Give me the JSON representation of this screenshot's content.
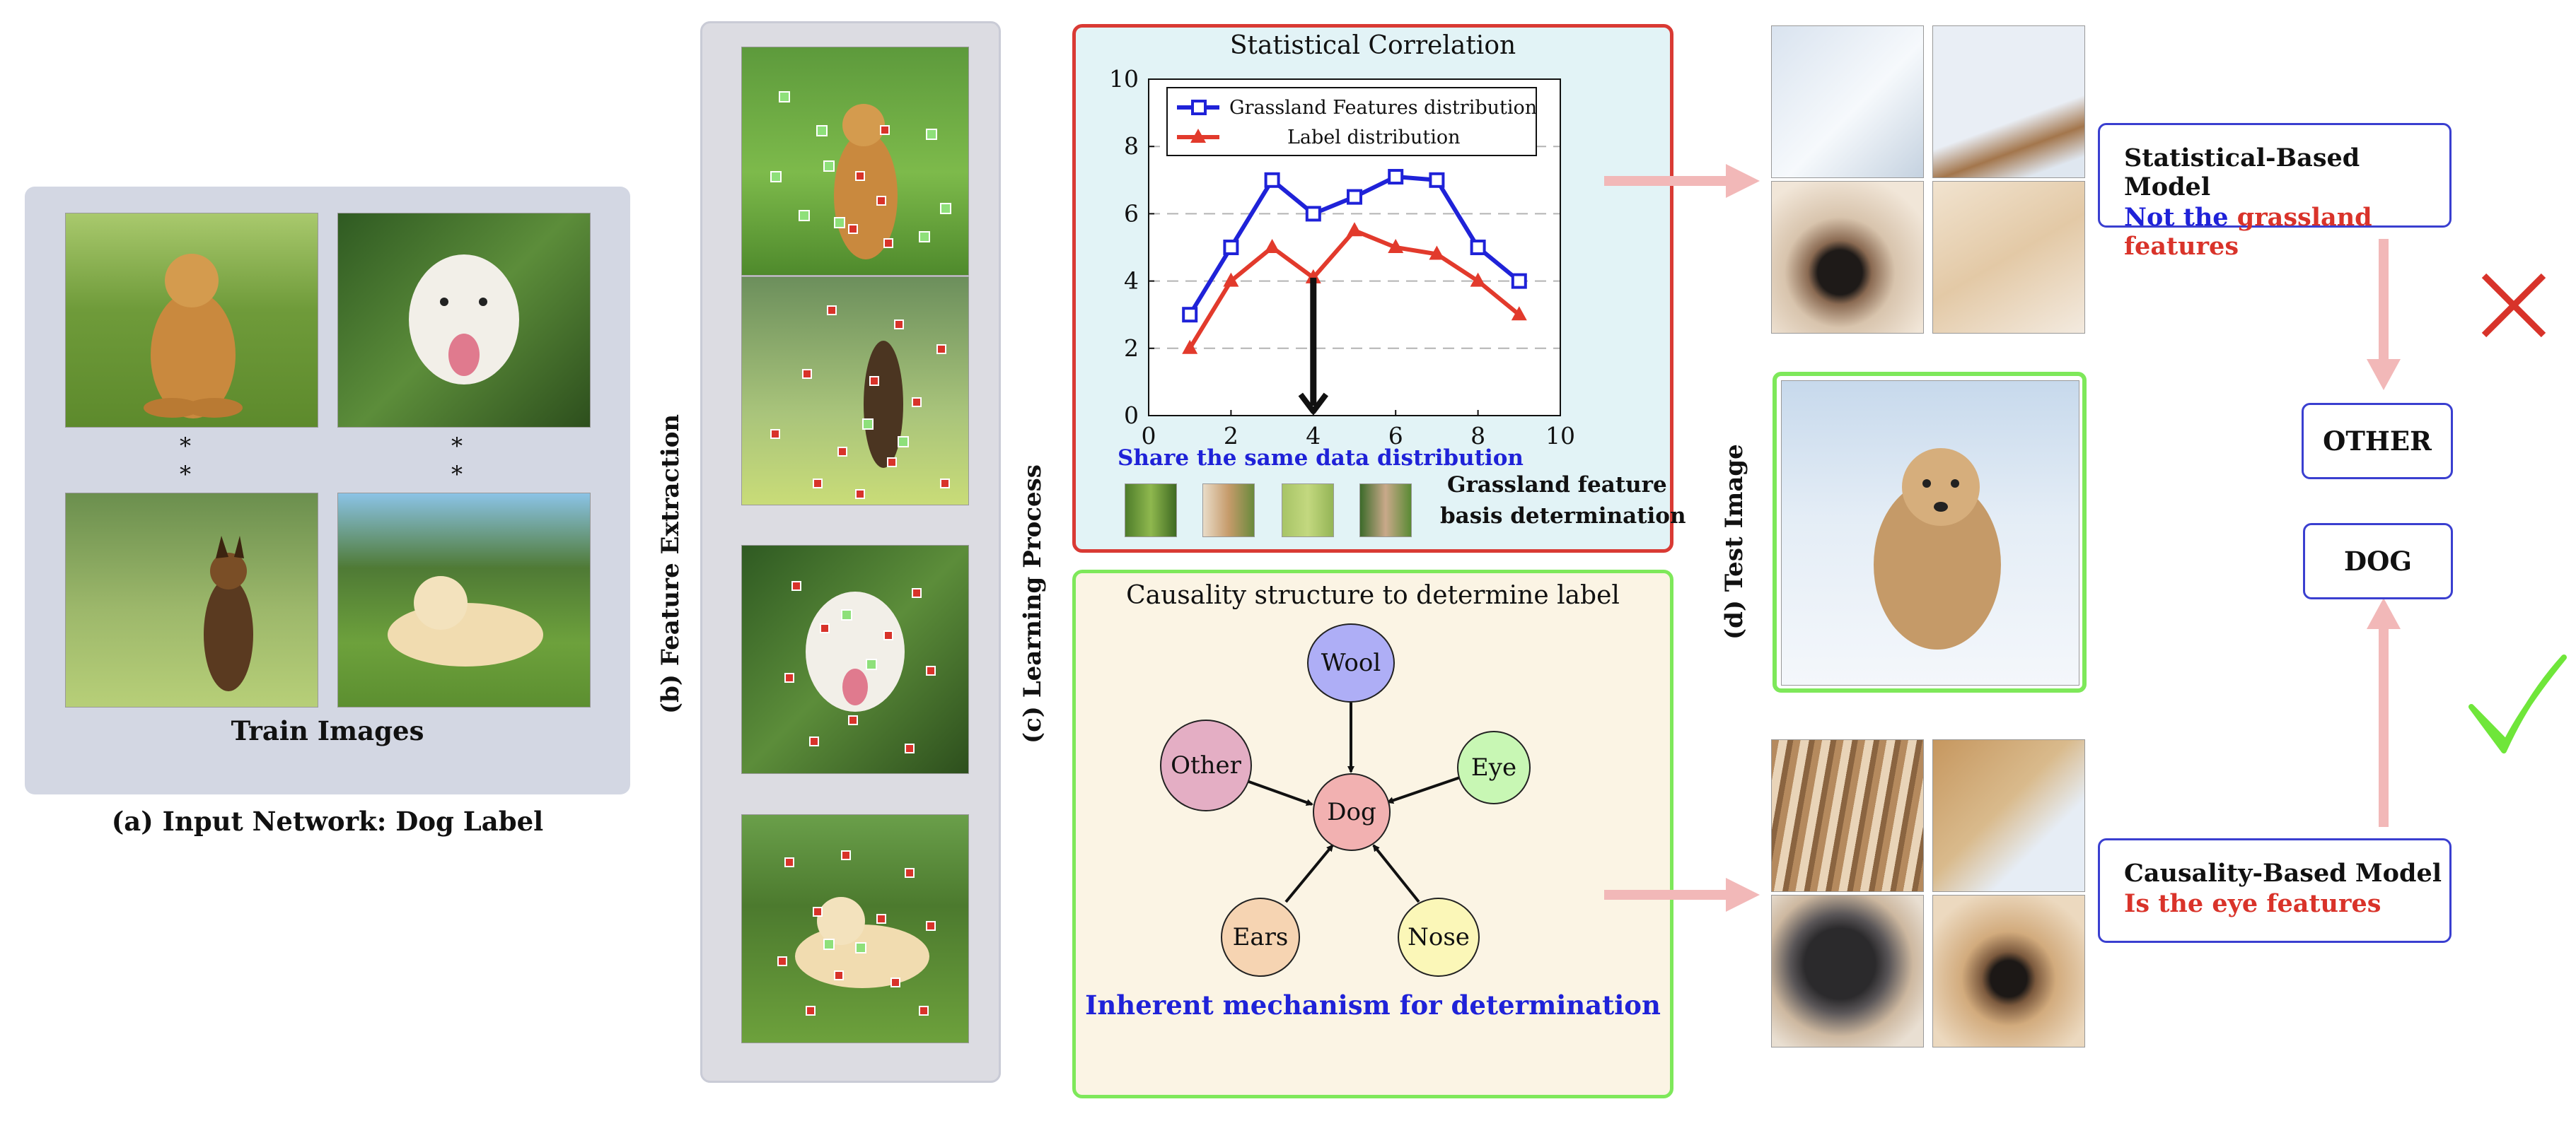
{
  "panel_a": {
    "caption": "(a) Input Network: Dog Label",
    "train_label": "Train Images",
    "ellipsis_marks": [
      "*",
      "*",
      "*",
      "*"
    ]
  },
  "panel_b": {
    "label": "(b) Feature Extraction"
  },
  "panel_c": {
    "label": "(c) Learning Process"
  },
  "panel_d": {
    "label": "(d) Test Image"
  },
  "stat_box": {
    "title": "Statistical Correlation",
    "share_text": "Share the same data distribution",
    "grass_note_1": "Grassland feature",
    "grass_note_2": "basis determination"
  },
  "chart_data": {
    "type": "line",
    "x": [
      1,
      2,
      3,
      4,
      5,
      6,
      7,
      8,
      9
    ],
    "xlim": [
      0,
      10
    ],
    "ylim": [
      0,
      10
    ],
    "x_ticks": [
      "0",
      "2",
      "4",
      "6",
      "8",
      "10"
    ],
    "y_ticks": [
      "0",
      "2",
      "4",
      "6",
      "8",
      "10"
    ],
    "grid": "horizontal dashed",
    "legend_placement": "top",
    "series": [
      {
        "name": "Grassland Features distribution",
        "color": "#1f22d8",
        "marker": "square",
        "values": [
          3,
          5,
          7,
          6,
          6.5,
          7.1,
          7,
          5,
          4
        ]
      },
      {
        "name": "Label distribution",
        "color": "#e23a2c",
        "marker": "triangle",
        "values": [
          2,
          4,
          5,
          4.1,
          5.5,
          5,
          4.8,
          4,
          3
        ]
      }
    ],
    "annotation": {
      "type": "arrow",
      "x": 4,
      "from_y": 4.1,
      "to_y": 0
    }
  },
  "causal_box": {
    "title": "Causality structure to determine label",
    "footer": "Inherent mechanism for determination",
    "nodes": {
      "wool": {
        "label": "Wool",
        "color": "#aeaef6"
      },
      "other": {
        "label": "Other",
        "color": "#e4aec4"
      },
      "eye": {
        "label": "Eye",
        "color": "#c8f7b4"
      },
      "dog": {
        "label": "Dog",
        "color": "#f2b1b1"
      },
      "ears": {
        "label": "Ears",
        "color": "#f6d4b2"
      },
      "nose": {
        "label": "Nose",
        "color": "#fbf7b8"
      }
    }
  },
  "stat_model": {
    "title": "Statistical-Based Model",
    "line_prefix": "Not the",
    "line_highlight": "grassland features"
  },
  "causal_model": {
    "title": "Causality-Based Model",
    "line": "Is the eye features"
  },
  "labels": {
    "other": "OTHER",
    "dog": "DOG"
  },
  "marks": {
    "cross": "wrong-mark",
    "check": "correct-mark"
  },
  "colors": {
    "blue_text": "#1f22d8",
    "red_text": "#d9332a",
    "arrow_pink": "#f2b8b8",
    "cross_red": "#d8332a",
    "check_green": "#6fe63a"
  }
}
